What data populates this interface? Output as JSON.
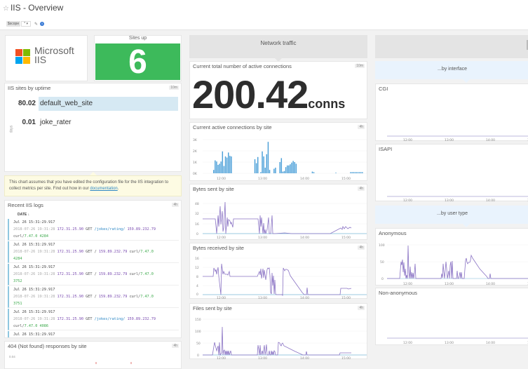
{
  "header": {
    "title": "IIS - Overview",
    "star_icon": "star-outline-icon"
  },
  "template_vars": {
    "scope_label": "$scope",
    "scope_value": "*",
    "edit_icon": "pencil-icon",
    "info_icon": "info-icon"
  },
  "logo": {
    "line1": "Microsoft",
    "line2": "IIS",
    "colors": [
      "#f25022",
      "#7fba00",
      "#00a4ef",
      "#ffb900"
    ]
  },
  "sites_up": {
    "title": "Sites up",
    "value": "6",
    "color": "#3dba5b"
  },
  "uptime": {
    "title": "IIS sites by uptime",
    "badge": "10m",
    "axis_label": "days",
    "rows": [
      {
        "value": "80.02",
        "name": "default_web_site",
        "pct": 100
      },
      {
        "value": "0.01",
        "name": "joke_rater",
        "pct": 0
      }
    ]
  },
  "note": {
    "text": "This chart assumes that you have edited the configuration file for the IIS integration to collect metrics per site. Find out how in our ",
    "link": "documentation",
    "tail": "."
  },
  "logs": {
    "title": "Recent IIS logs",
    "badge": "4h",
    "column": "DATE ↓",
    "entries": [
      {
        "date": "Jul 26 15:31:29.917",
        "ts": "2018-07-26 19:31:28",
        "ip": "172.31.25.90",
        "method": "GET",
        "path": "/jokes/rating/",
        "client": "159.89.232.79",
        "agent": "curl/",
        "ver": "7.47.0",
        "size": "4284"
      },
      {
        "date": "Jul 26 15:31:29.917",
        "ts": "2018-07-26 19:31:28",
        "ip": "172.31.25.90",
        "method": "GET",
        "path": "/",
        "client": "159.89.232.79",
        "agent": "curl/",
        "ver": "7.47.0",
        "size": "4284"
      },
      {
        "date": "Jul 26 15:31:29.917",
        "ts": "2018-07-26 19:31:28",
        "ip": "172.31.25.90",
        "method": "GET",
        "path": "/",
        "client": "159.89.232.79",
        "agent": "curl/",
        "ver": "7.47.0",
        "size": "3752"
      },
      {
        "date": "Jul 26 15:31:29.917",
        "ts": "2018-07-26 19:31:28",
        "ip": "172.31.25.90",
        "method": "GET",
        "path": "/",
        "client": "159.89.232.79",
        "agent": "curl/",
        "ver": "7.47.0",
        "size": "3751"
      },
      {
        "date": "Jul 26 15:31:29.917",
        "ts": "2018-07-26 19:31:28",
        "ip": "172.31.25.90",
        "method": "GET",
        "path": "/jokes/rating/",
        "client": "159.89.232.79",
        "agent": "curl/",
        "ver": "7.47.0",
        "size": "4086"
      },
      {
        "date": "Jul 26 15:31:29.917"
      }
    ]
  },
  "not_found": {
    "title": "404 (Not found) responses by site",
    "badge": "4h",
    "y_top": "0.04"
  },
  "network": {
    "header": "Network traffic",
    "active_conns": {
      "title": "Current total number of active connections",
      "badge": "10m",
      "value": "200.42",
      "unit": "conns"
    },
    "conns_by_site": {
      "title": "Current active connections by site",
      "badge": "4h"
    },
    "bytes_sent": {
      "title": "Bytes sent by site",
      "badge": "4h"
    },
    "bytes_received": {
      "title": "Bytes received by site",
      "badge": "4h"
    },
    "files_sent": {
      "title": "Files sent by site",
      "badge": "4h"
    }
  },
  "right": {
    "by_interface": "...by interface",
    "cgi": {
      "title": "CGI"
    },
    "isapi": {
      "title": "ISAPI"
    },
    "by_user_type": "...by user type",
    "anonymous": {
      "title": "Anonymous"
    },
    "non_anonymous": {
      "title": "Non-anonymous"
    }
  },
  "chart_data": [
    {
      "type": "bar",
      "title": "Current active connections by site",
      "x_ticks": [
        "12:00",
        "13:00",
        "14:00",
        "15:00"
      ],
      "y_ticks": [
        "0K",
        "1K",
        "2K",
        "3K"
      ],
      "ylim": [
        0,
        3000
      ],
      "color": "#4a9fd8",
      "values": [
        300,
        1150,
        1050,
        750,
        850,
        1050,
        1950,
        650,
        1500,
        1400,
        1850,
        1550,
        1500,
        0,
        0,
        0,
        0,
        0,
        0,
        0,
        0,
        0,
        0,
        0,
        0,
        0,
        0,
        0,
        1250,
        900,
        1450,
        0,
        100,
        1950,
        1500,
        500,
        1700,
        2800,
        300,
        0,
        0,
        400,
        500,
        0,
        0,
        1000,
        1350,
        150,
        200,
        550,
        700,
        700,
        800,
        950,
        1100,
        1000,
        850,
        0,
        0,
        0,
        0,
        0,
        0,
        0,
        0,
        0,
        0,
        150,
        100,
        0,
        0,
        0,
        0,
        0,
        0,
        0,
        0,
        0,
        0,
        0,
        0,
        0,
        0,
        50,
        0,
        0,
        0,
        0,
        0,
        0,
        0,
        0,
        0,
        100,
        100,
        100,
        100,
        100,
        100,
        100,
        100,
        100
      ]
    },
    {
      "type": "line",
      "title": "Bytes sent by site",
      "x_ticks": [
        "12:00",
        "13:00",
        "14:00",
        "15:00"
      ],
      "y_ticks": [
        "0",
        "16",
        "32",
        "48"
      ],
      "ylim": [
        0,
        56
      ]
    },
    {
      "type": "line",
      "title": "Bytes received by site",
      "x_ticks": [
        "12:00",
        "13:00",
        "14:00",
        "15:00"
      ],
      "y_ticks": [
        "0",
        "4",
        "8",
        "12",
        "16"
      ],
      "ylim": [
        0,
        16
      ]
    },
    {
      "type": "line",
      "title": "Files sent by site",
      "x_ticks": [
        "12:00",
        "13:00",
        "14:00",
        "15:00"
      ],
      "y_ticks": [
        "0",
        "50",
        "100",
        "150"
      ],
      "ylim": [
        0,
        150
      ]
    },
    {
      "type": "line",
      "title": "Anonymous",
      "x_ticks": [
        "12:00",
        "13:00",
        "14:00"
      ],
      "y_ticks": [
        "0",
        "50",
        "100"
      ],
      "ylim": [
        0,
        100
      ]
    },
    {
      "type": "line",
      "title": "CGI",
      "x_ticks": [
        "12:00",
        "13:00",
        "14:00"
      ]
    },
    {
      "type": "line",
      "title": "ISAPI",
      "x_ticks": [
        "12:00",
        "13:00",
        "14:00"
      ]
    },
    {
      "type": "line",
      "title": "Non-anonymous",
      "x_ticks": [
        "12:00",
        "13:00",
        "14:00"
      ]
    }
  ]
}
